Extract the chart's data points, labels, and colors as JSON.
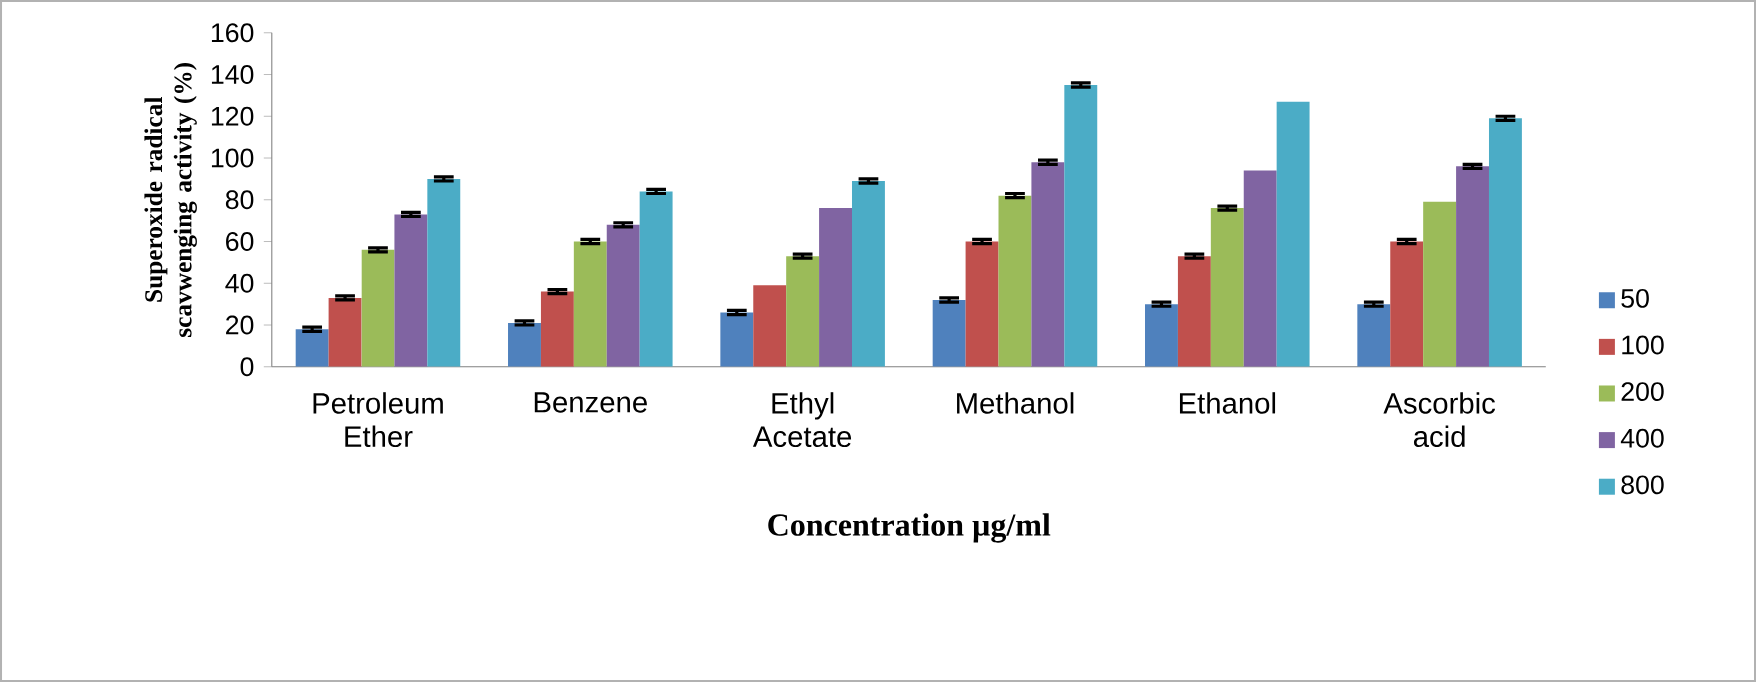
{
  "chart_data": {
    "type": "bar",
    "xlabel": "Concentration µg/ml",
    "ylabel": "Superoxide radical scavwenging activity (%)",
    "categories": [
      "Petroleum Ether",
      "Benzene",
      "Ethyl Acetate",
      "Methanol",
      "Ethanol",
      "Ascorbic acid"
    ],
    "series": [
      {
        "name": "50",
        "color": "#4f81bd",
        "values": [
          18,
          21,
          26,
          32,
          30,
          30
        ],
        "errors": [
          1,
          1,
          1,
          1,
          1,
          1
        ]
      },
      {
        "name": "100",
        "color": "#c0504d",
        "values": [
          33,
          36,
          39,
          60,
          53,
          60
        ],
        "errors": [
          1,
          1,
          null,
          1,
          1,
          1
        ]
      },
      {
        "name": "200",
        "color": "#9bbb59",
        "values": [
          56,
          60,
          53,
          82,
          76,
          79
        ],
        "errors": [
          1,
          1,
          1,
          1,
          1,
          null
        ]
      },
      {
        "name": "400",
        "color": "#8064a2",
        "values": [
          73,
          68,
          76,
          98,
          94,
          96
        ],
        "errors": [
          1,
          1,
          null,
          1,
          null,
          1
        ]
      },
      {
        "name": "800",
        "color": "#4bacc6",
        "values": [
          90,
          84,
          89,
          135,
          127,
          119
        ],
        "errors": [
          1,
          1,
          1,
          1,
          null,
          1
        ]
      }
    ],
    "ylim": [
      0,
      160
    ],
    "yticks": [
      0,
      20,
      40,
      60,
      80,
      100,
      120,
      140,
      160
    ],
    "legend": "right"
  }
}
